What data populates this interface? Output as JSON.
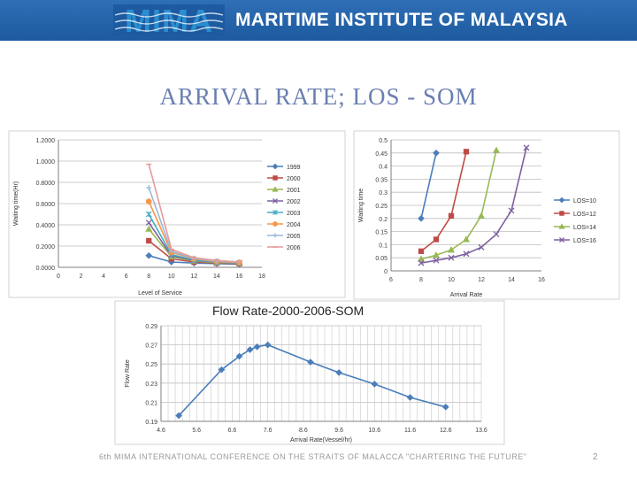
{
  "header": {
    "logo_text": "MIMA",
    "title": "MARITIME INSTITUTE OF MALAYSIA",
    "banner_color": "#2564ab",
    "logo_color": "#2a8ed0"
  },
  "slide": {
    "title": "ARRIVAL RATE; LOS - SOM",
    "footer": "6th MIMA INTERNATIONAL CONFERENCE ON THE STRAITS OF MALACCA \"CHARTERING THE FUTURE\"",
    "page_number": "2"
  },
  "chart_data": [
    {
      "type": "line",
      "title": "",
      "xlabel": "Level of Service",
      "ylabel": "Waiting time(Hr)",
      "xlim": [
        0,
        18
      ],
      "ylim": [
        0,
        1.2
      ],
      "x_ticks": [
        "0",
        "2",
        "4",
        "6",
        "8",
        "10",
        "12",
        "14",
        "16",
        "18"
      ],
      "y_ticks": [
        "0.0000",
        "0.2000",
        "0.4000",
        "0.6000",
        "0.8000",
        "1.0000",
        "1.2000"
      ],
      "grid": "horizontal",
      "legend": "right",
      "series": [
        {
          "name": "1999",
          "color": "#4a7ebb",
          "marker": "diamond",
          "x": [
            8,
            10,
            12,
            14,
            16
          ],
          "y": [
            0.11,
            0.05,
            0.04,
            0.035,
            0.03
          ]
        },
        {
          "name": "2000",
          "color": "#be4b48",
          "marker": "square",
          "x": [
            8,
            10,
            12,
            14,
            16
          ],
          "y": [
            0.25,
            0.08,
            0.05,
            0.04,
            0.035
          ]
        },
        {
          "name": "2001",
          "color": "#98b954",
          "marker": "triangle",
          "x": [
            8,
            10,
            12,
            14,
            16
          ],
          "y": [
            0.36,
            0.1,
            0.06,
            0.045,
            0.04
          ]
        },
        {
          "name": "2002",
          "color": "#7d60a0",
          "marker": "x",
          "x": [
            8,
            10,
            12,
            14,
            16
          ],
          "y": [
            0.42,
            0.11,
            0.065,
            0.05,
            0.04
          ]
        },
        {
          "name": "2003",
          "color": "#46aac5",
          "marker": "star",
          "x": [
            8,
            10,
            12,
            14,
            16
          ],
          "y": [
            0.5,
            0.12,
            0.07,
            0.05,
            0.04
          ]
        },
        {
          "name": "2004",
          "color": "#f79646",
          "marker": "circle",
          "x": [
            8,
            10,
            12,
            14,
            16
          ],
          "y": [
            0.62,
            0.14,
            0.08,
            0.055,
            0.045
          ]
        },
        {
          "name": "2005",
          "color": "#9cb7d9",
          "marker": "plus",
          "x": [
            8,
            10,
            12,
            14,
            16
          ],
          "y": [
            0.75,
            0.15,
            0.085,
            0.06,
            0.05
          ]
        },
        {
          "name": "2006",
          "color": "#e69a9a",
          "marker": "dash",
          "x": [
            8,
            10,
            12,
            14,
            16
          ],
          "y": [
            0.97,
            0.17,
            0.09,
            0.065,
            0.05
          ]
        }
      ]
    },
    {
      "type": "line",
      "title": "",
      "xlabel": "Arrival Rate",
      "ylabel": "Waiting time",
      "xlim": [
        6,
        16
      ],
      "ylim": [
        0,
        0.5
      ],
      "x_ticks": [
        "6",
        "8",
        "10",
        "12",
        "14",
        "16"
      ],
      "y_ticks": [
        "0",
        "0.05",
        "0.1",
        "0.15",
        "0.2",
        "0.25",
        "0.3",
        "0.35",
        "0.4",
        "0.45",
        "0.5"
      ],
      "grid": "horizontal",
      "legend": "right",
      "series": [
        {
          "name": "LOS=10",
          "color": "#4a7ebb",
          "marker": "diamond",
          "x": [
            8,
            9
          ],
          "y": [
            0.2,
            0.45
          ]
        },
        {
          "name": "LOS=12",
          "color": "#be4b48",
          "marker": "square",
          "x": [
            8,
            9,
            10,
            11
          ],
          "y": [
            0.075,
            0.12,
            0.21,
            0.455
          ]
        },
        {
          "name": "LOS=14",
          "color": "#98b954",
          "marker": "triangle",
          "x": [
            8,
            9,
            10,
            11,
            12,
            13
          ],
          "y": [
            0.045,
            0.06,
            0.08,
            0.12,
            0.21,
            0.46
          ]
        },
        {
          "name": "LOS=16",
          "color": "#7d60a0",
          "marker": "x",
          "x": [
            8,
            9,
            10,
            11,
            12,
            13,
            14,
            15
          ],
          "y": [
            0.03,
            0.04,
            0.05,
            0.065,
            0.09,
            0.14,
            0.23,
            0.47
          ]
        }
      ]
    },
    {
      "type": "line",
      "title": "Flow Rate-2000-2006-SOM",
      "xlabel": "Arrival Rate(Vessel/hr)",
      "ylabel": "Flow Rate",
      "xlim": [
        4.6,
        13.6
      ],
      "ylim": [
        0.19,
        0.29
      ],
      "x_ticks": [
        "4.6",
        "5.6",
        "6.6",
        "7.6",
        "8.6",
        "9.6",
        "10.6",
        "11.6",
        "12.6",
        "13.6"
      ],
      "y_ticks": [
        "0.19",
        "0.21",
        "0.23",
        "0.25",
        "0.27",
        "0.29"
      ],
      "grid": "both",
      "legend": "none",
      "series": [
        {
          "name": "",
          "color": "#4a7ebb",
          "marker": "diamond",
          "x": [
            5.1,
            6.3,
            6.8,
            7.1,
            7.3,
            7.6,
            8.8,
            9.6,
            10.6,
            11.6,
            12.6
          ],
          "y": [
            0.196,
            0.244,
            0.258,
            0.265,
            0.268,
            0.27,
            0.252,
            0.241,
            0.229,
            0.215,
            0.205
          ]
        }
      ]
    }
  ]
}
